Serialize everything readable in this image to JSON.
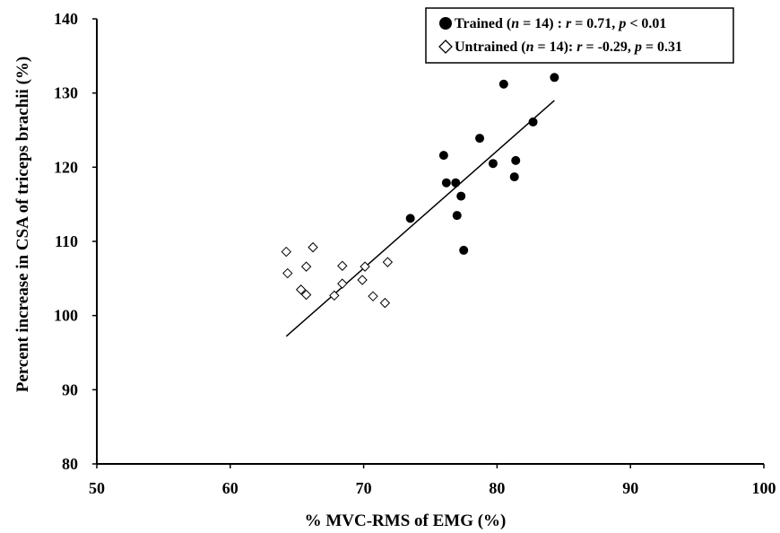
{
  "chart_data": {
    "type": "scatter",
    "xlabel": "% MVC-RMS of EMG (%)",
    "ylabel": "Percent increase in CSA of triceps brachii (%)",
    "xlim": [
      50,
      100
    ],
    "ylim": [
      80,
      140
    ],
    "x_ticks": [
      "50",
      "60",
      "70",
      "80",
      "90",
      "100"
    ],
    "y_ticks": [
      "80",
      "90",
      "100",
      "110",
      "120",
      "130",
      "140"
    ],
    "grid": false,
    "legend_position": "top-right",
    "legend": [
      {
        "marker": "filled-circle",
        "parts": [
          {
            "t": "Trained (",
            "i": false
          },
          {
            "t": "n",
            "i": true
          },
          {
            "t": " = 14) : ",
            "i": false
          },
          {
            "t": "r",
            "i": true
          },
          {
            "t": " = 0.71, ",
            "i": false
          },
          {
            "t": "p",
            "i": true
          },
          {
            "t": " <  0.01",
            "i": false
          }
        ]
      },
      {
        "marker": "open-diamond",
        "parts": [
          {
            "t": "Untrained (",
            "i": false
          },
          {
            "t": "n",
            "i": true
          },
          {
            "t": " = 14): ",
            "i": false
          },
          {
            "t": "r",
            "i": true
          },
          {
            "t": " = -0.29, ",
            "i": false
          },
          {
            "t": "p",
            "i": true
          },
          {
            "t": " = 0.31",
            "i": false
          }
        ]
      }
    ],
    "series": [
      {
        "name": "Trained",
        "marker": "filled-circle",
        "color": "#000000",
        "points": [
          [
            84.3,
            132.1
          ],
          [
            80.5,
            131.2
          ],
          [
            82.7,
            126.1
          ],
          [
            78.7,
            123.9
          ],
          [
            76.0,
            121.6
          ],
          [
            79.7,
            120.5
          ],
          [
            81.4,
            120.9
          ],
          [
            81.3,
            118.7
          ],
          [
            76.2,
            117.9
          ],
          [
            76.9,
            117.9
          ],
          [
            77.3,
            116.1
          ],
          [
            73.5,
            113.1
          ],
          [
            77.0,
            113.5
          ],
          [
            77.5,
            108.8
          ]
        ]
      },
      {
        "name": "Untrained",
        "marker": "open-diamond",
        "color": "#000000",
        "points": [
          [
            64.2,
            108.6
          ],
          [
            66.2,
            109.2
          ],
          [
            64.3,
            105.7
          ],
          [
            65.7,
            106.6
          ],
          [
            68.4,
            106.7
          ],
          [
            70.1,
            106.6
          ],
          [
            71.8,
            107.2
          ],
          [
            65.3,
            103.5
          ],
          [
            65.7,
            102.8
          ],
          [
            67.8,
            102.7
          ],
          [
            68.4,
            104.3
          ],
          [
            69.9,
            104.8
          ],
          [
            70.7,
            102.6
          ],
          [
            71.6,
            101.7
          ]
        ]
      }
    ],
    "trendline": {
      "x": [
        64.2,
        84.3
      ],
      "y": [
        97.2,
        129.0
      ]
    }
  }
}
